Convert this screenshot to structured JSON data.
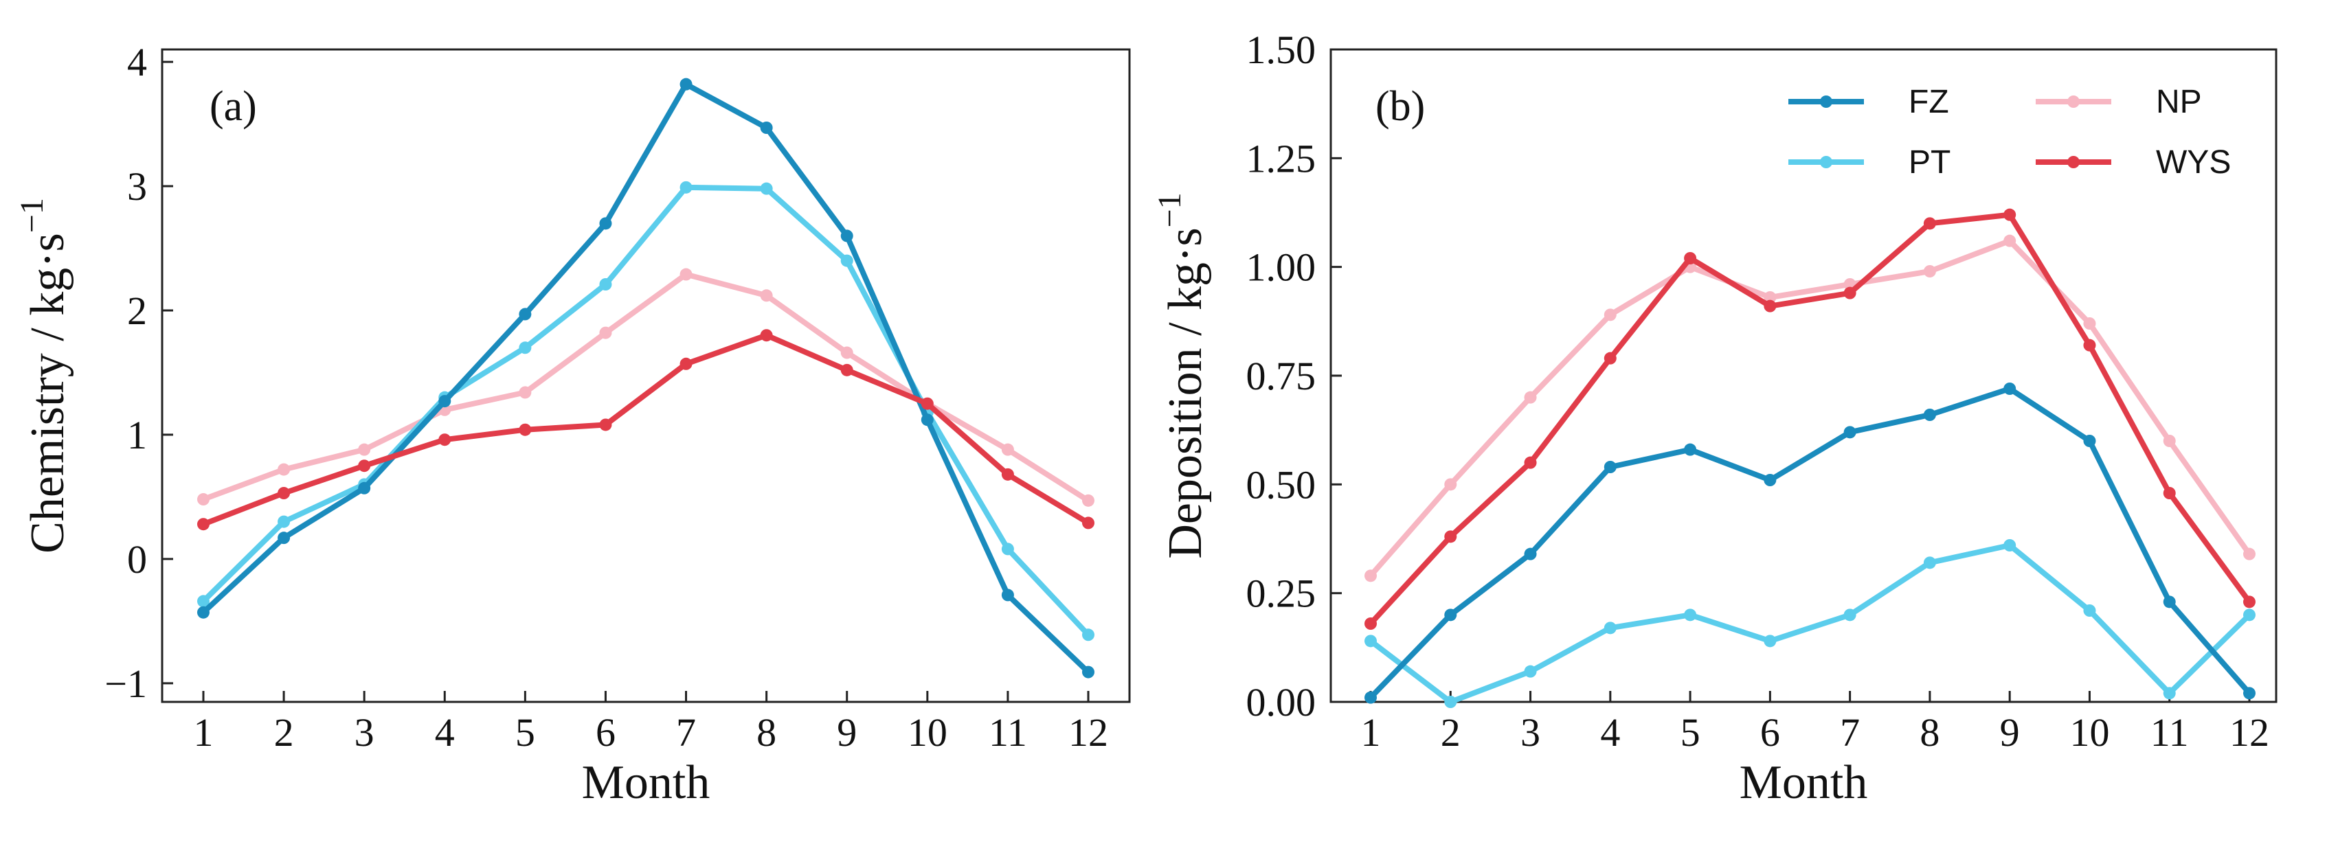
{
  "chart_data": [
    {
      "type": "line",
      "panel_label": "(a)",
      "xlabel": "Month",
      "ylabel": "Chemistry / kg·s",
      "ylabel_superscript": "−1",
      "categories": [
        "1",
        "2",
        "3",
        "4",
        "5",
        "6",
        "7",
        "8",
        "9",
        "10",
        "11",
        "12"
      ],
      "ylim": [
        -1.15,
        4.1
      ],
      "yticks": [
        -1,
        0,
        1,
        2,
        3,
        4
      ],
      "ytick_labels": [
        "−1",
        "0",
        "1",
        "2",
        "3",
        "4"
      ],
      "series": [
        {
          "name": "NP",
          "color": "#f7b6c2",
          "values": [
            0.48,
            0.72,
            0.88,
            1.2,
            1.34,
            1.82,
            2.29,
            2.12,
            1.66,
            1.25,
            0.88,
            0.47
          ]
        },
        {
          "name": "PT",
          "color": "#5bcdec",
          "values": [
            -0.34,
            0.3,
            0.6,
            1.3,
            1.7,
            2.21,
            2.99,
            2.98,
            2.4,
            1.18,
            0.08,
            -0.61
          ]
        },
        {
          "name": "FZ",
          "color": "#1a8bbd",
          "values": [
            -0.43,
            0.17,
            0.57,
            1.27,
            1.97,
            2.7,
            3.82,
            3.47,
            2.6,
            1.12,
            -0.29,
            -0.91
          ]
        },
        {
          "name": "WYS",
          "color": "#e13c49",
          "values": [
            0.28,
            0.53,
            0.75,
            0.96,
            1.04,
            1.08,
            1.57,
            1.8,
            1.52,
            1.25,
            0.68,
            0.29
          ]
        }
      ]
    },
    {
      "type": "line",
      "panel_label": "(b)",
      "xlabel": "Month",
      "ylabel": "Deposition / kg·s",
      "ylabel_superscript": "−1",
      "categories": [
        "1",
        "2",
        "3",
        "4",
        "5",
        "6",
        "7",
        "8",
        "9",
        "10",
        "11",
        "12"
      ],
      "ylim": [
        0,
        1.5
      ],
      "yticks": [
        0,
        0.25,
        0.5,
        0.75,
        1.0,
        1.25,
        1.5
      ],
      "ytick_labels": [
        "0.00",
        "0.25",
        "0.50",
        "0.75",
        "1.00",
        "1.25",
        "1.50"
      ],
      "legend_position": "top-right",
      "series": [
        {
          "name": "NP",
          "color": "#f7b6c2",
          "values": [
            0.29,
            0.5,
            0.7,
            0.89,
            1.0,
            0.93,
            0.96,
            0.99,
            1.06,
            0.87,
            0.6,
            0.34
          ]
        },
        {
          "name": "PT",
          "color": "#5bcdec",
          "values": [
            0.14,
            0.0,
            0.07,
            0.17,
            0.2,
            0.14,
            0.2,
            0.32,
            0.36,
            0.21,
            0.02,
            0.2
          ]
        },
        {
          "name": "FZ",
          "color": "#1a8bbd",
          "values": [
            0.01,
            0.2,
            0.34,
            0.54,
            0.58,
            0.51,
            0.62,
            0.66,
            0.72,
            0.6,
            0.23,
            0.02
          ]
        },
        {
          "name": "WYS",
          "color": "#e13c49",
          "values": [
            0.18,
            0.38,
            0.55,
            0.79,
            1.02,
            0.91,
            0.94,
            1.1,
            1.12,
            0.82,
            0.48,
            0.23
          ]
        }
      ]
    }
  ],
  "legend": {
    "entries": [
      {
        "name": "FZ",
        "color": "#1a8bbd"
      },
      {
        "name": "NP",
        "color": "#f7b6c2"
      },
      {
        "name": "PT",
        "color": "#5bcdec"
      },
      {
        "name": "WYS",
        "color": "#e13c49"
      }
    ]
  }
}
